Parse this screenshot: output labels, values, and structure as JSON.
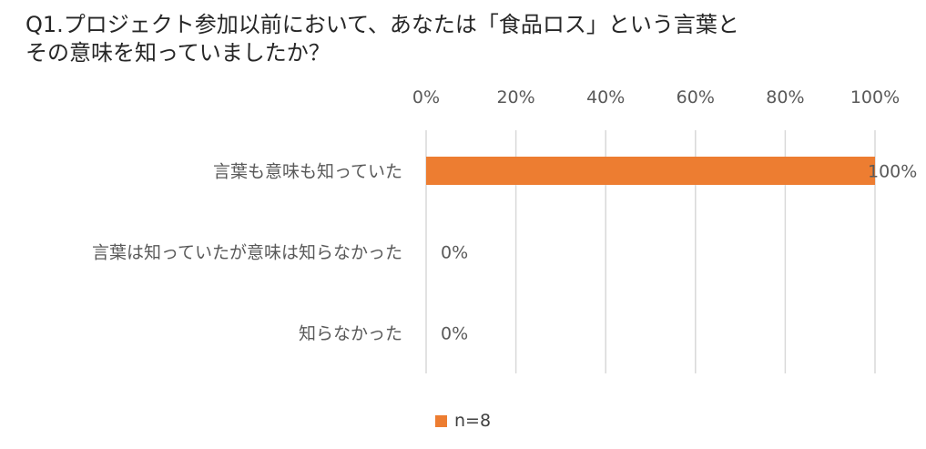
{
  "title_line1": "Q1.プロジェクト参加以前において、あなたは「食品ロス」という言葉と",
  "title_line2": "その意味を知っていましたか？",
  "chart_data": {
    "type": "bar",
    "orientation": "horizontal",
    "categories": [
      "言葉も意味も知っていた",
      "言葉は知っていたが意味は知らなかった",
      "知らなかった"
    ],
    "series": [
      {
        "name": "n=8",
        "values": [
          100,
          0,
          0
        ],
        "color": "#ED7D31"
      }
    ],
    "data_labels": [
      "100%",
      "0%",
      "0%"
    ],
    "x_ticks": [
      0,
      20,
      40,
      60,
      80,
      100
    ],
    "x_tick_labels": [
      "0%",
      "20%",
      "40%",
      "60%",
      "80%",
      "100%"
    ],
    "xlim": [
      0,
      100
    ],
    "x_axis_position": "top",
    "grid": true,
    "legend_position": "bottom",
    "title": "Q1.プロジェクト参加以前において、あなたは「食品ロス」という言葉とその意味を知っていましたか？",
    "xlabel": "",
    "ylabel": ""
  },
  "colors": {
    "gridline": "#D9D9D9",
    "axis_text": "#595959",
    "bar": "#ED7D31"
  }
}
